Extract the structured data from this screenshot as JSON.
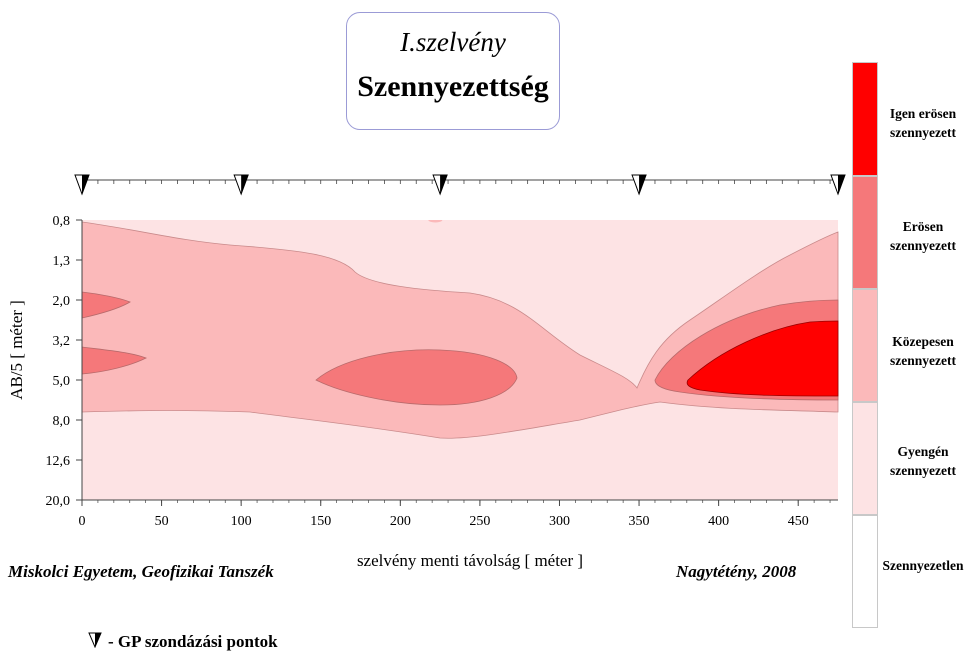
{
  "title": {
    "line1": "I.szelvény",
    "line2": "Szennyezettség"
  },
  "chart_data": {
    "type": "contour",
    "xlabel": "szelvény menti távolság [ méter ]",
    "ylabel": "AB/5 [ méter ]",
    "x_ticks": [
      "0",
      "50",
      "100",
      "150",
      "200",
      "250",
      "300",
      "350",
      "400",
      "450"
    ],
    "y_ticks": [
      "0,8",
      "1,3",
      "2,0",
      "3,2",
      "5,0",
      "8,0",
      "12,6",
      "20,0"
    ],
    "xlim": [
      0,
      475
    ],
    "gp_points": [
      0,
      100,
      225,
      350,
      475
    ],
    "levels": [
      {
        "label": "Igen erősen szennyezett",
        "color": "#ff0000"
      },
      {
        "label": "Erősen szennyezett",
        "color": "#f5787a"
      },
      {
        "label": "Közepesen szennyezett",
        "color": "#fbb9ba"
      },
      {
        "label": "Gyengén szennyezett",
        "color": "#fde3e4"
      },
      {
        "label": "Szennyezetlen",
        "color": "#ffffff"
      }
    ]
  },
  "legend": {
    "l1a": "Igen erösen",
    "l1b": "szennyezett",
    "l2a": "Erösen",
    "l2b": "szennyezett",
    "l3a": "Közepesen",
    "l3b": "szennyezett",
    "l4a": "Gyengén",
    "l4b": "szennyezett",
    "l5": "Szennyezetlen"
  },
  "footer": {
    "left": "Miskolci Egyetem, Geofizikai Tanszék",
    "right": "Nagytétény, 2008",
    "gp": "- GP szondázási pontok"
  }
}
